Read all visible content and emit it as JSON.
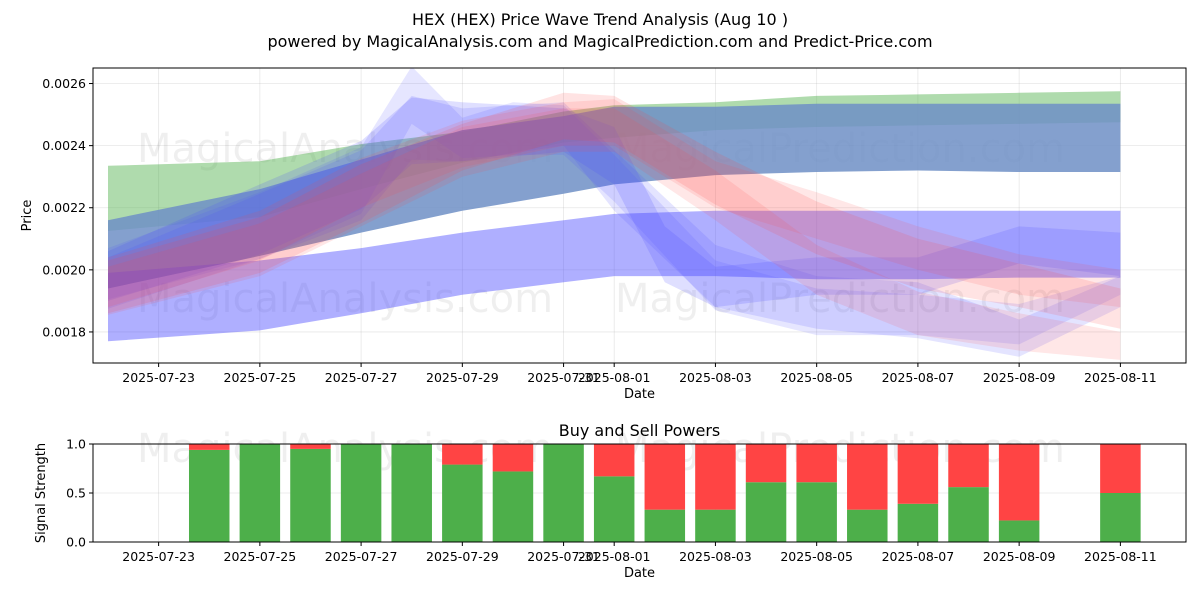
{
  "header": {
    "title": "HEX (HEX) Price Wave Trend Analysis (Aug 10 )",
    "subtitle": "powered by MagicalAnalysis.com and MagicalPrediction.com and Predict-Price.com"
  },
  "watermarks": [
    "MagicalAnalysis.com",
    "MagicalPrediction.com"
  ],
  "colors": {
    "green": "#4daf4a",
    "red": "#ff4444",
    "blue": "#4d4dff",
    "darkblue": "#6f8fc5"
  },
  "chart_data": [
    {
      "type": "area",
      "title": "",
      "xlabel": "Date",
      "ylabel": "Price",
      "xlim": [
        "2025-07-22",
        "2025-08-12"
      ],
      "ylim": [
        0.0017,
        0.00265
      ],
      "x_ticks": [
        "2025-07-23",
        "2025-07-25",
        "2025-07-27",
        "2025-07-29",
        "2025-07-31",
        "2025-08-01",
        "2025-08-03",
        "2025-08-05",
        "2025-08-07",
        "2025-08-09",
        "2025-08-11"
      ],
      "y_ticks": [
        0.0018,
        0.002,
        0.0022,
        0.0024,
        0.0026
      ],
      "y_tick_labels": [
        "0.0018",
        "0.0020",
        "0.0022",
        "0.0024",
        "0.0026"
      ],
      "grid": true,
      "series": [
        {
          "color": "green",
          "opacity": 0.45,
          "x": [
            "2025-07-22",
            "2025-07-25",
            "2025-07-27",
            "2025-07-29",
            "2025-07-31",
            "2025-08-01",
            "2025-08-03",
            "2025-08-05",
            "2025-08-07",
            "2025-08-09",
            "2025-08-11"
          ],
          "upper": [
            0.002335,
            0.00235,
            0.002405,
            0.002445,
            0.00251,
            0.00253,
            0.00254,
            0.00256,
            0.002565,
            0.00257,
            0.002575
          ],
          "lower": [
            0.002125,
            0.00217,
            0.00226,
            0.002345,
            0.00241,
            0.002425,
            0.00245,
            0.00246,
            0.002465,
            0.00247,
            0.002475
          ]
        },
        {
          "color": "darkblue",
          "opacity": 0.85,
          "x": [
            "2025-07-22",
            "2025-07-25",
            "2025-07-27",
            "2025-07-29",
            "2025-07-31",
            "2025-08-01",
            "2025-08-03",
            "2025-08-05",
            "2025-08-07",
            "2025-08-09",
            "2025-08-11"
          ],
          "upper": [
            0.00216,
            0.00226,
            0.002355,
            0.00245,
            0.002495,
            0.002525,
            0.002525,
            0.002535,
            0.002535,
            0.002535,
            0.002535
          ],
          "lower": [
            0.00194,
            0.002045,
            0.00212,
            0.00219,
            0.002245,
            0.002275,
            0.002305,
            0.002315,
            0.00232,
            0.002315,
            0.002315
          ]
        },
        {
          "color": "blue",
          "opacity": 0.45,
          "x": [
            "2025-07-22",
            "2025-07-25",
            "2025-07-27",
            "2025-07-29",
            "2025-07-31",
            "2025-08-01",
            "2025-08-03",
            "2025-08-05",
            "2025-08-07",
            "2025-08-09",
            "2025-08-11"
          ],
          "upper": [
            0.00199,
            0.00203,
            0.00207,
            0.00212,
            0.00216,
            0.00218,
            0.00219,
            0.00219,
            0.00219,
            0.00219,
            0.00219
          ],
          "lower": [
            0.00177,
            0.001805,
            0.00186,
            0.00192,
            0.00196,
            0.00198,
            0.00198,
            0.00197,
            0.00197,
            0.001975,
            0.001975
          ]
        },
        {
          "color": "blue",
          "opacity": 0.18,
          "x": [
            "2025-07-22",
            "2025-07-25",
            "2025-07-27",
            "2025-07-28",
            "2025-07-29",
            "2025-07-31",
            "2025-08-01",
            "2025-08-02",
            "2025-08-03",
            "2025-08-05",
            "2025-08-07",
            "2025-08-09",
            "2025-08-11"
          ],
          "upper": [
            0.00206,
            0.002275,
            0.002415,
            0.002555,
            0.00254,
            0.00252,
            0.00246,
            0.00214,
            0.00201,
            0.00204,
            0.00204,
            0.00214,
            0.00212
          ],
          "lower": [
            0.0019,
            0.00205,
            0.002195,
            0.00234,
            0.00235,
            0.00238,
            0.002275,
            0.00196,
            0.00188,
            0.00192,
            0.00192,
            0.00202,
            0.00198
          ]
        },
        {
          "color": "blue",
          "opacity": 0.15,
          "x": [
            "2025-07-22",
            "2025-07-25",
            "2025-07-27",
            "2025-07-28",
            "2025-07-29",
            "2025-07-31",
            "2025-08-01",
            "2025-08-03",
            "2025-08-05",
            "2025-08-07",
            "2025-08-09",
            "2025-08-11"
          ],
          "upper": [
            0.00204,
            0.002245,
            0.002385,
            0.00256,
            0.00252,
            0.00254,
            0.002385,
            0.00208,
            0.00198,
            0.00196,
            0.00184,
            0.00198
          ],
          "lower": [
            0.001875,
            0.002035,
            0.00216,
            0.002355,
            0.00235,
            0.0024,
            0.00219,
            0.00188,
            0.00181,
            0.00178,
            0.00172,
            0.00188
          ]
        },
        {
          "color": "blue",
          "opacity": 0.14,
          "x": [
            "2025-07-22",
            "2025-07-25",
            "2025-07-27",
            "2025-07-28",
            "2025-07-29",
            "2025-07-30",
            "2025-07-31",
            "2025-08-01",
            "2025-08-03",
            "2025-08-05",
            "2025-08-07",
            "2025-08-09",
            "2025-08-11"
          ],
          "upper": [
            0.00207,
            0.00225,
            0.002395,
            0.002655,
            0.00249,
            0.00254,
            0.00253,
            0.00237,
            0.00203,
            0.00194,
            0.00192,
            0.00189,
            0.00198
          ],
          "lower": [
            0.001905,
            0.002035,
            0.00218,
            0.00247,
            0.00236,
            0.00237,
            0.00237,
            0.00222,
            0.00187,
            0.00179,
            0.00179,
            0.00176,
            0.00192
          ]
        },
        {
          "color": "red",
          "opacity": 0.15,
          "x": [
            "2025-07-22",
            "2025-07-25",
            "2025-07-27",
            "2025-07-29",
            "2025-07-31",
            "2025-08-01",
            "2025-08-03",
            "2025-08-05",
            "2025-08-07",
            "2025-08-09",
            "2025-08-11"
          ],
          "upper": [
            0.00203,
            0.00217,
            0.00234,
            0.00247,
            0.00257,
            0.00256,
            0.00238,
            0.00222,
            0.0021,
            0.00202,
            0.00194
          ],
          "lower": [
            0.00186,
            0.00199,
            0.00215,
            0.00232,
            0.00242,
            0.00241,
            0.00221,
            0.00205,
            0.00194,
            0.00188,
            0.00181
          ]
        },
        {
          "color": "red",
          "opacity": 0.13,
          "x": [
            "2025-07-22",
            "2025-07-25",
            "2025-07-27",
            "2025-07-29",
            "2025-07-31",
            "2025-08-01",
            "2025-08-03",
            "2025-08-05",
            "2025-08-07",
            "2025-08-09",
            "2025-08-11"
          ],
          "upper": [
            0.00201,
            0.00215,
            0.00231,
            0.00246,
            0.00252,
            0.00252,
            0.00232,
            0.00208,
            0.00193,
            0.00186,
            0.0018
          ],
          "lower": [
            0.001855,
            0.00198,
            0.00214,
            0.0023,
            0.00238,
            0.00238,
            0.00216,
            0.00192,
            0.00179,
            0.00174,
            0.00171
          ]
        },
        {
          "color": "red",
          "opacity": 0.13,
          "x": [
            "2025-07-22",
            "2025-07-25",
            "2025-07-27",
            "2025-07-29",
            "2025-07-31",
            "2025-08-01",
            "2025-08-03",
            "2025-08-05",
            "2025-08-07",
            "2025-08-09",
            "2025-08-11"
          ],
          "upper": [
            0.00204,
            0.00219,
            0.00236,
            0.00248,
            0.00254,
            0.00255,
            0.00235,
            0.00225,
            0.00214,
            0.00205,
            0.002
          ],
          "lower": [
            0.00188,
            0.00203,
            0.0022,
            0.00233,
            0.0024,
            0.0024,
            0.0022,
            0.0021,
            0.002,
            0.00192,
            0.00188
          ]
        }
      ]
    },
    {
      "type": "bar",
      "title": "Buy and Sell Powers",
      "xlabel": "Date",
      "ylabel": "Signal Strength",
      "xlim": [
        "2025-07-22",
        "2025-08-12"
      ],
      "ylim": [
        0,
        1
      ],
      "x_ticks": [
        "2025-07-23",
        "2025-07-25",
        "2025-07-27",
        "2025-07-29",
        "2025-07-31",
        "2025-08-01",
        "2025-08-03",
        "2025-08-05",
        "2025-08-07",
        "2025-08-09",
        "2025-08-11"
      ],
      "y_ticks": [
        0,
        0.5,
        1
      ],
      "y_tick_labels": [
        "0.0",
        "0.5",
        "1.0"
      ],
      "grid": true,
      "categories": [
        "2025-07-24",
        "2025-07-25",
        "2025-07-26",
        "2025-07-27",
        "2025-07-28",
        "2025-07-29",
        "2025-07-30",
        "2025-07-31",
        "2025-08-01",
        "2025-08-02",
        "2025-08-03",
        "2025-08-04",
        "2025-08-05",
        "2025-08-06",
        "2025-08-07",
        "2025-08-08",
        "2025-08-09",
        "2025-08-11"
      ],
      "series": [
        {
          "color": "green",
          "values": [
            0.94,
            1.0,
            0.95,
            1.0,
            1.0,
            0.79,
            0.72,
            1.0,
            0.67,
            0.33,
            0.33,
            0.61,
            0.61,
            0.33,
            0.39,
            0.56,
            0.22,
            0.5
          ]
        },
        {
          "color": "red",
          "values": [
            0.06,
            0.0,
            0.05,
            0.0,
            0.0,
            0.21,
            0.28,
            0.0,
            0.33,
            0.67,
            0.67,
            0.39,
            0.39,
            0.67,
            0.61,
            0.44,
            0.78,
            0.5
          ]
        }
      ]
    }
  ]
}
